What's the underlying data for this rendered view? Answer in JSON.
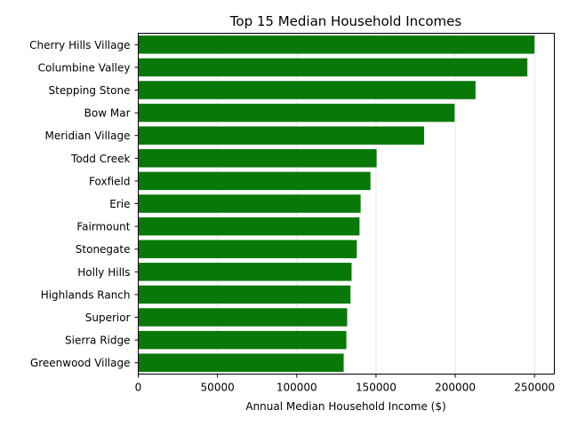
{
  "chart_data": {
    "type": "bar",
    "orientation": "horizontal",
    "title": "Top 15 Median Household Incomes",
    "xlabel": "Annual Median Household Income ($)",
    "ylabel": "",
    "categories": [
      "Cherry Hills Village",
      "Columbine Valley",
      "Stepping Stone",
      "Bow Mar",
      "Meridian Village",
      "Todd Creek",
      "Foxfield",
      "Erie",
      "Fairmount",
      "Stonegate",
      "Holly Hills",
      "Highlands Ranch",
      "Superior",
      "Sierra Ridge",
      "Greenwood Village"
    ],
    "values": [
      250001,
      245500,
      212800,
      199600,
      180300,
      150400,
      146500,
      140300,
      139600,
      137900,
      134600,
      133900,
      131800,
      131300,
      129600
    ],
    "xlim": [
      0,
      262500
    ],
    "xticks": [
      "0",
      "50000",
      "100000",
      "150000",
      "200000",
      "250000"
    ],
    "xtick_values": [
      0,
      50000,
      100000,
      150000,
      200000,
      250000
    ],
    "grid": "vertical",
    "bar_color": "#087808",
    "grid_color": "#e6e6e6"
  }
}
